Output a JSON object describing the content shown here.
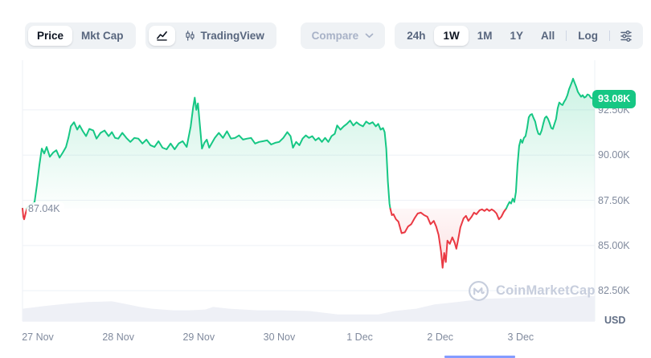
{
  "header": {
    "price_tab": "Price",
    "mktcap_tab": "Mkt Cap",
    "tradingview_label": "TradingView",
    "compare_label": "Compare",
    "ranges": [
      "24h",
      "1W",
      "1M",
      "1Y",
      "All"
    ],
    "active_range": "1W",
    "log_label": "Log"
  },
  "watermark_text": "CoinMarketCap",
  "chart_data": {
    "type": "area",
    "unit": "USD",
    "x_unit": "days since 27 Nov 00:00",
    "x_range": [
      -0.19,
      6.92
    ],
    "ylim": [
      80.82,
      95.25
    ],
    "grid": true,
    "baseline": 87.04,
    "baseline_label": "87.04K",
    "current": 93.08,
    "current_label": "93.08K",
    "up_color": "#16c784",
    "down_color": "#ea3943",
    "grid_color": "#eef1f6",
    "volume_color": "#eef0f6",
    "axis_text_color": "#808a9d",
    "y_ticks": [
      {
        "value": 92.5,
        "label": "92.50K"
      },
      {
        "value": 90.0,
        "label": "90.00K"
      },
      {
        "value": 87.5,
        "label": "87.50K"
      },
      {
        "value": 85.0,
        "label": "85.00K"
      },
      {
        "value": 82.5,
        "label": "82.50K"
      }
    ],
    "x_ticks": [
      {
        "t": 0,
        "label": "27 Nov"
      },
      {
        "t": 1,
        "label": "28 Nov"
      },
      {
        "t": 2,
        "label": "29 Nov"
      },
      {
        "t": 3,
        "label": "30 Nov"
      },
      {
        "t": 4,
        "label": "1 Dec"
      },
      {
        "t": 5,
        "label": "2 Dec"
      },
      {
        "t": 6,
        "label": "3 Dec"
      }
    ],
    "series": [
      [
        -0.19,
        87.04
      ],
      [
        -0.18,
        86.6
      ],
      [
        -0.17,
        86.45
      ],
      [
        -0.15,
        86.8
      ],
      [
        -0.13,
        87.1
      ],
      [
        -0.1,
        87.2
      ],
      [
        -0.07,
        87.3
      ],
      [
        -0.04,
        87.41
      ],
      [
        -0.01,
        88.36
      ],
      [
        0.02,
        89.45
      ],
      [
        0.05,
        90.36
      ],
      [
        0.08,
        90.09
      ],
      [
        0.11,
        90.45
      ],
      [
        0.15,
        89.91
      ],
      [
        0.19,
        90.14
      ],
      [
        0.23,
        90.27
      ],
      [
        0.27,
        89.86
      ],
      [
        0.31,
        90.14
      ],
      [
        0.35,
        90.45
      ],
      [
        0.38,
        90.95
      ],
      [
        0.41,
        91.59
      ],
      [
        0.45,
        91.82
      ],
      [
        0.49,
        91.41
      ],
      [
        0.52,
        91.64
      ],
      [
        0.56,
        91.32
      ],
      [
        0.6,
        91.05
      ],
      [
        0.64,
        91.45
      ],
      [
        0.69,
        91.36
      ],
      [
        0.73,
        90.91
      ],
      [
        0.78,
        91.23
      ],
      [
        0.83,
        91.36
      ],
      [
        0.88,
        91.05
      ],
      [
        0.92,
        91.27
      ],
      [
        0.96,
        90.95
      ],
      [
        1.0,
        90.91
      ],
      [
        1.05,
        91.23
      ],
      [
        1.1,
        90.95
      ],
      [
        1.15,
        90.73
      ],
      [
        1.2,
        90.95
      ],
      [
        1.25,
        90.91
      ],
      [
        1.3,
        90.64
      ],
      [
        1.35,
        90.86
      ],
      [
        1.4,
        90.55
      ],
      [
        1.45,
        90.45
      ],
      [
        1.5,
        90.77
      ],
      [
        1.55,
        90.41
      ],
      [
        1.6,
        90.32
      ],
      [
        1.65,
        90.64
      ],
      [
        1.7,
        90.32
      ],
      [
        1.75,
        90.64
      ],
      [
        1.8,
        90.77
      ],
      [
        1.85,
        90.45
      ],
      [
        1.9,
        91.59
      ],
      [
        1.93,
        92.64
      ],
      [
        1.95,
        93.18
      ],
      [
        1.97,
        92.5
      ],
      [
        1.99,
        92.86
      ],
      [
        2.01,
        91.86
      ],
      [
        2.04,
        90.36
      ],
      [
        2.07,
        90.68
      ],
      [
        2.1,
        90.86
      ],
      [
        2.13,
        90.41
      ],
      [
        2.16,
        90.64
      ],
      [
        2.2,
        90.95
      ],
      [
        2.25,
        91.23
      ],
      [
        2.3,
        90.95
      ],
      [
        2.35,
        91.32
      ],
      [
        2.4,
        90.91
      ],
      [
        2.45,
        90.95
      ],
      [
        2.5,
        91.09
      ],
      [
        2.55,
        90.86
      ],
      [
        2.6,
        90.91
      ],
      [
        2.65,
        90.95
      ],
      [
        2.7,
        90.64
      ],
      [
        2.75,
        90.73
      ],
      [
        2.8,
        90.77
      ],
      [
        2.85,
        90.82
      ],
      [
        2.9,
        90.59
      ],
      [
        2.95,
        90.68
      ],
      [
        3.0,
        90.73
      ],
      [
        3.05,
        90.95
      ],
      [
        3.1,
        91.27
      ],
      [
        3.14,
        91.05
      ],
      [
        3.17,
        90.41
      ],
      [
        3.21,
        90.73
      ],
      [
        3.25,
        90.55
      ],
      [
        3.29,
        90.91
      ],
      [
        3.33,
        91.09
      ],
      [
        3.37,
        90.95
      ],
      [
        3.41,
        91.05
      ],
      [
        3.45,
        90.82
      ],
      [
        3.49,
        90.95
      ],
      [
        3.53,
        90.73
      ],
      [
        3.57,
        90.95
      ],
      [
        3.61,
        90.73
      ],
      [
        3.65,
        91.05
      ],
      [
        3.69,
        91.18
      ],
      [
        3.72,
        91.64
      ],
      [
        3.76,
        91.41
      ],
      [
        3.8,
        91.59
      ],
      [
        3.84,
        91.73
      ],
      [
        3.88,
        91.91
      ],
      [
        3.92,
        91.64
      ],
      [
        3.96,
        91.82
      ],
      [
        4.0,
        91.68
      ],
      [
        4.04,
        91.59
      ],
      [
        4.08,
        91.86
      ],
      [
        4.12,
        91.73
      ],
      [
        4.16,
        91.82
      ],
      [
        4.2,
        91.59
      ],
      [
        4.23,
        91.73
      ],
      [
        4.26,
        91.41
      ],
      [
        4.29,
        91.5
      ],
      [
        4.31,
        91.27
      ],
      [
        4.33,
        90.36
      ],
      [
        4.35,
        88.55
      ],
      [
        4.37,
        87.32
      ],
      [
        4.38,
        87.04
      ],
      [
        4.4,
        86.68
      ],
      [
        4.42,
        86.73
      ],
      [
        4.45,
        86.45
      ],
      [
        4.48,
        86.32
      ],
      [
        4.52,
        85.68
      ],
      [
        4.56,
        85.73
      ],
      [
        4.6,
        86.05
      ],
      [
        4.64,
        86.18
      ],
      [
        4.68,
        86.5
      ],
      [
        4.72,
        86.77
      ],
      [
        4.76,
        86.82
      ],
      [
        4.8,
        86.68
      ],
      [
        4.84,
        86.59
      ],
      [
        4.88,
        86.18
      ],
      [
        4.92,
        86.36
      ],
      [
        4.95,
        86.05
      ],
      [
        4.98,
        85.59
      ],
      [
        5.01,
        84.68
      ],
      [
        5.03,
        83.77
      ],
      [
        5.05,
        84.59
      ],
      [
        5.07,
        84.09
      ],
      [
        5.09,
        85.27
      ],
      [
        5.12,
        85.09
      ],
      [
        5.15,
        85.45
      ],
      [
        5.18,
        85.14
      ],
      [
        5.2,
        84.82
      ],
      [
        5.22,
        85.27
      ],
      [
        5.25,
        86.0
      ],
      [
        5.29,
        86.5
      ],
      [
        5.32,
        86.64
      ],
      [
        5.35,
        86.36
      ],
      [
        5.39,
        86.59
      ],
      [
        5.42,
        86.82
      ],
      [
        5.45,
        86.73
      ],
      [
        5.49,
        86.95
      ],
      [
        5.52,
        87.0
      ],
      [
        5.55,
        86.91
      ],
      [
        5.58,
        87.02
      ],
      [
        5.61,
        86.91
      ],
      [
        5.64,
        87.0
      ],
      [
        5.67,
        86.91
      ],
      [
        5.7,
        86.77
      ],
      [
        5.73,
        86.45
      ],
      [
        5.76,
        86.59
      ],
      [
        5.79,
        86.86
      ],
      [
        5.82,
        87.04
      ],
      [
        5.84,
        87.23
      ],
      [
        5.86,
        87.41
      ],
      [
        5.88,
        87.32
      ],
      [
        5.9,
        87.59
      ],
      [
        5.92,
        87.41
      ],
      [
        5.94,
        87.95
      ],
      [
        5.96,
        89.45
      ],
      [
        5.98,
        90.5
      ],
      [
        6.0,
        90.86
      ],
      [
        6.02,
        90.68
      ],
      [
        6.04,
        90.95
      ],
      [
        6.06,
        91.05
      ],
      [
        6.08,
        91.5
      ],
      [
        6.1,
        92.09
      ],
      [
        6.12,
        92.23
      ],
      [
        6.14,
        92.27
      ],
      [
        6.16,
        92.05
      ],
      [
        6.18,
        91.86
      ],
      [
        6.2,
        91.45
      ],
      [
        6.22,
        91.18
      ],
      [
        6.24,
        91.14
      ],
      [
        6.26,
        91.36
      ],
      [
        6.28,
        91.73
      ],
      [
        6.3,
        92.05
      ],
      [
        6.32,
        92.14
      ],
      [
        6.34,
        92.0
      ],
      [
        6.36,
        91.77
      ],
      [
        6.38,
        91.5
      ],
      [
        6.4,
        91.45
      ],
      [
        6.42,
        91.73
      ],
      [
        6.44,
        92.0
      ],
      [
        6.46,
        92.59
      ],
      [
        6.48,
        92.91
      ],
      [
        6.5,
        92.82
      ],
      [
        6.52,
        92.77
      ],
      [
        6.54,
        92.95
      ],
      [
        6.56,
        93.09
      ],
      [
        6.58,
        93.32
      ],
      [
        6.6,
        93.64
      ],
      [
        6.62,
        93.86
      ],
      [
        6.64,
        94.09
      ],
      [
        6.65,
        94.23
      ],
      [
        6.67,
        94.0
      ],
      [
        6.69,
        93.77
      ],
      [
        6.71,
        93.5
      ],
      [
        6.73,
        93.36
      ],
      [
        6.75,
        93.23
      ],
      [
        6.77,
        93.32
      ],
      [
        6.79,
        93.18
      ],
      [
        6.81,
        93.23
      ],
      [
        6.83,
        93.36
      ],
      [
        6.85,
        93.32
      ],
      [
        6.87,
        93.18
      ],
      [
        6.92,
        93.08
      ]
    ],
    "volume_profile": [
      [
        -0.19,
        0.48
      ],
      [
        0.07,
        0.58
      ],
      [
        0.37,
        0.68
      ],
      [
        0.62,
        0.74
      ],
      [
        0.92,
        0.77
      ],
      [
        1.12,
        0.65
      ],
      [
        1.27,
        0.55
      ],
      [
        1.42,
        0.48
      ],
      [
        1.68,
        0.42
      ],
      [
        1.88,
        0.42
      ],
      [
        2.08,
        0.45
      ],
      [
        2.18,
        0.55
      ],
      [
        2.38,
        0.48
      ],
      [
        2.73,
        0.42
      ],
      [
        3.03,
        0.42
      ],
      [
        3.38,
        0.39
      ],
      [
        3.73,
        0.26
      ],
      [
        4.03,
        0.26
      ],
      [
        4.23,
        0.26
      ],
      [
        4.43,
        0.39
      ],
      [
        4.7,
        0.48
      ],
      [
        4.93,
        0.65
      ],
      [
        5.21,
        0.74
      ],
      [
        5.54,
        0.87
      ],
      [
        5.87,
        0.9
      ],
      [
        6.21,
        0.94
      ],
      [
        6.54,
        0.9
      ],
      [
        6.81,
        1.0
      ],
      [
        6.92,
        0.97
      ]
    ]
  }
}
